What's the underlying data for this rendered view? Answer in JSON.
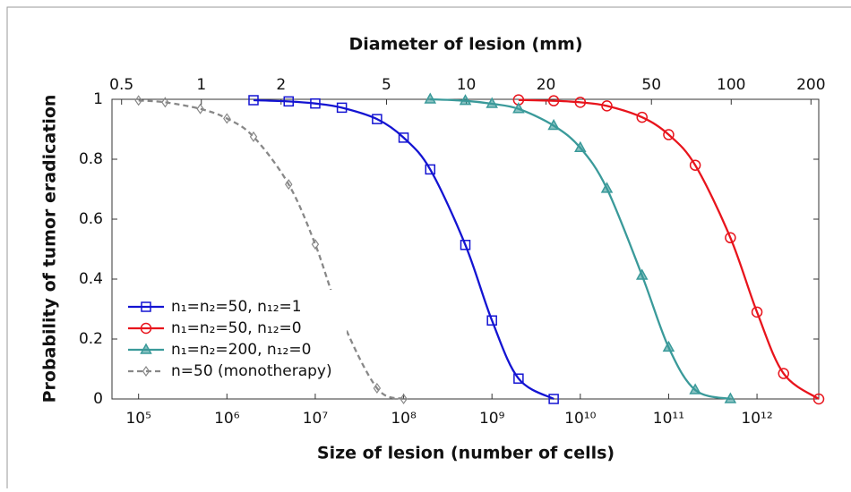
{
  "chart_data": {
    "type": "line",
    "title": "Diameter of lesion (mm)",
    "xlabel": "Size of lesion (number of cells)",
    "ylabel": "Probability of tumor eradication",
    "xscale": "log",
    "xlim": [
      50000,
      5000000000000
    ],
    "xticks": [
      {
        "value": 100000,
        "label": "10⁵"
      },
      {
        "value": 1000000,
        "label": "10⁶"
      },
      {
        "value": 10000000,
        "label": "10⁷"
      },
      {
        "value": 100000000,
        "label": "10⁸"
      },
      {
        "value": 1000000000,
        "label": "10⁹"
      },
      {
        "value": 10000000000,
        "label": "10¹⁰"
      },
      {
        "value": 100000000000,
        "label": "10¹¹"
      },
      {
        "value": 1000000000000,
        "label": "10¹²"
      }
    ],
    "x2scale": "log",
    "x2lim": [
      0.46,
      214
    ],
    "x2ticks": [
      0.5,
      1,
      2,
      5,
      10,
      20,
      50,
      100,
      200
    ],
    "ylim": [
      0,
      1
    ],
    "yticks": [
      0,
      0.2,
      0.4,
      0.6,
      0.8,
      1
    ],
    "legend": "lower left",
    "series": [
      {
        "name": "n₁=n₂=50, n₁₂=1",
        "color": "#1414d2",
        "marker": "square",
        "dash": false,
        "x": [
          2000000,
          5000000,
          10000000,
          20000000,
          50000000,
          100000000,
          200000000,
          500000000,
          1000000000,
          2000000000,
          5000000000
        ],
        "values": [
          0.997,
          0.993,
          0.986,
          0.972,
          0.934,
          0.872,
          0.766,
          0.514,
          0.262,
          0.068,
          0.0
        ]
      },
      {
        "name": "n₁=n₂=50, n₁₂=0",
        "color": "#e8141c",
        "marker": "circle",
        "dash": false,
        "x": [
          2000000000,
          5000000000,
          10000000000,
          20000000000,
          50000000000,
          100000000000,
          200000000000,
          500000000000,
          1000000000000,
          2000000000000,
          5000000000000
        ],
        "values": [
          0.998,
          0.995,
          0.99,
          0.978,
          0.94,
          0.882,
          0.78,
          0.538,
          0.29,
          0.085,
          0.0
        ]
      },
      {
        "name": "n₁=n₂=200, n₁₂=0",
        "color": "#3a9a9a",
        "marker": "triangle",
        "dash": false,
        "x": [
          200000000,
          500000000,
          1000000000,
          2000000000,
          5000000000,
          10000000000,
          20000000000,
          50000000000,
          100000000000,
          200000000000,
          500000000000
        ],
        "values": [
          1.0,
          0.995,
          0.985,
          0.968,
          0.912,
          0.838,
          0.702,
          0.412,
          0.172,
          0.03,
          0.0
        ]
      },
      {
        "name": "n=50 (monotherapy)",
        "color": "#888888",
        "marker": "diamond",
        "dash": true,
        "x": [
          100000,
          200000,
          500000,
          1000000,
          2000000,
          5000000,
          10000000,
          20000000,
          50000000,
          100000000
        ],
        "values": [
          0.996,
          0.99,
          0.968,
          0.936,
          0.875,
          0.716,
          0.516,
          0.264,
          0.036,
          0.0
        ]
      }
    ]
  }
}
